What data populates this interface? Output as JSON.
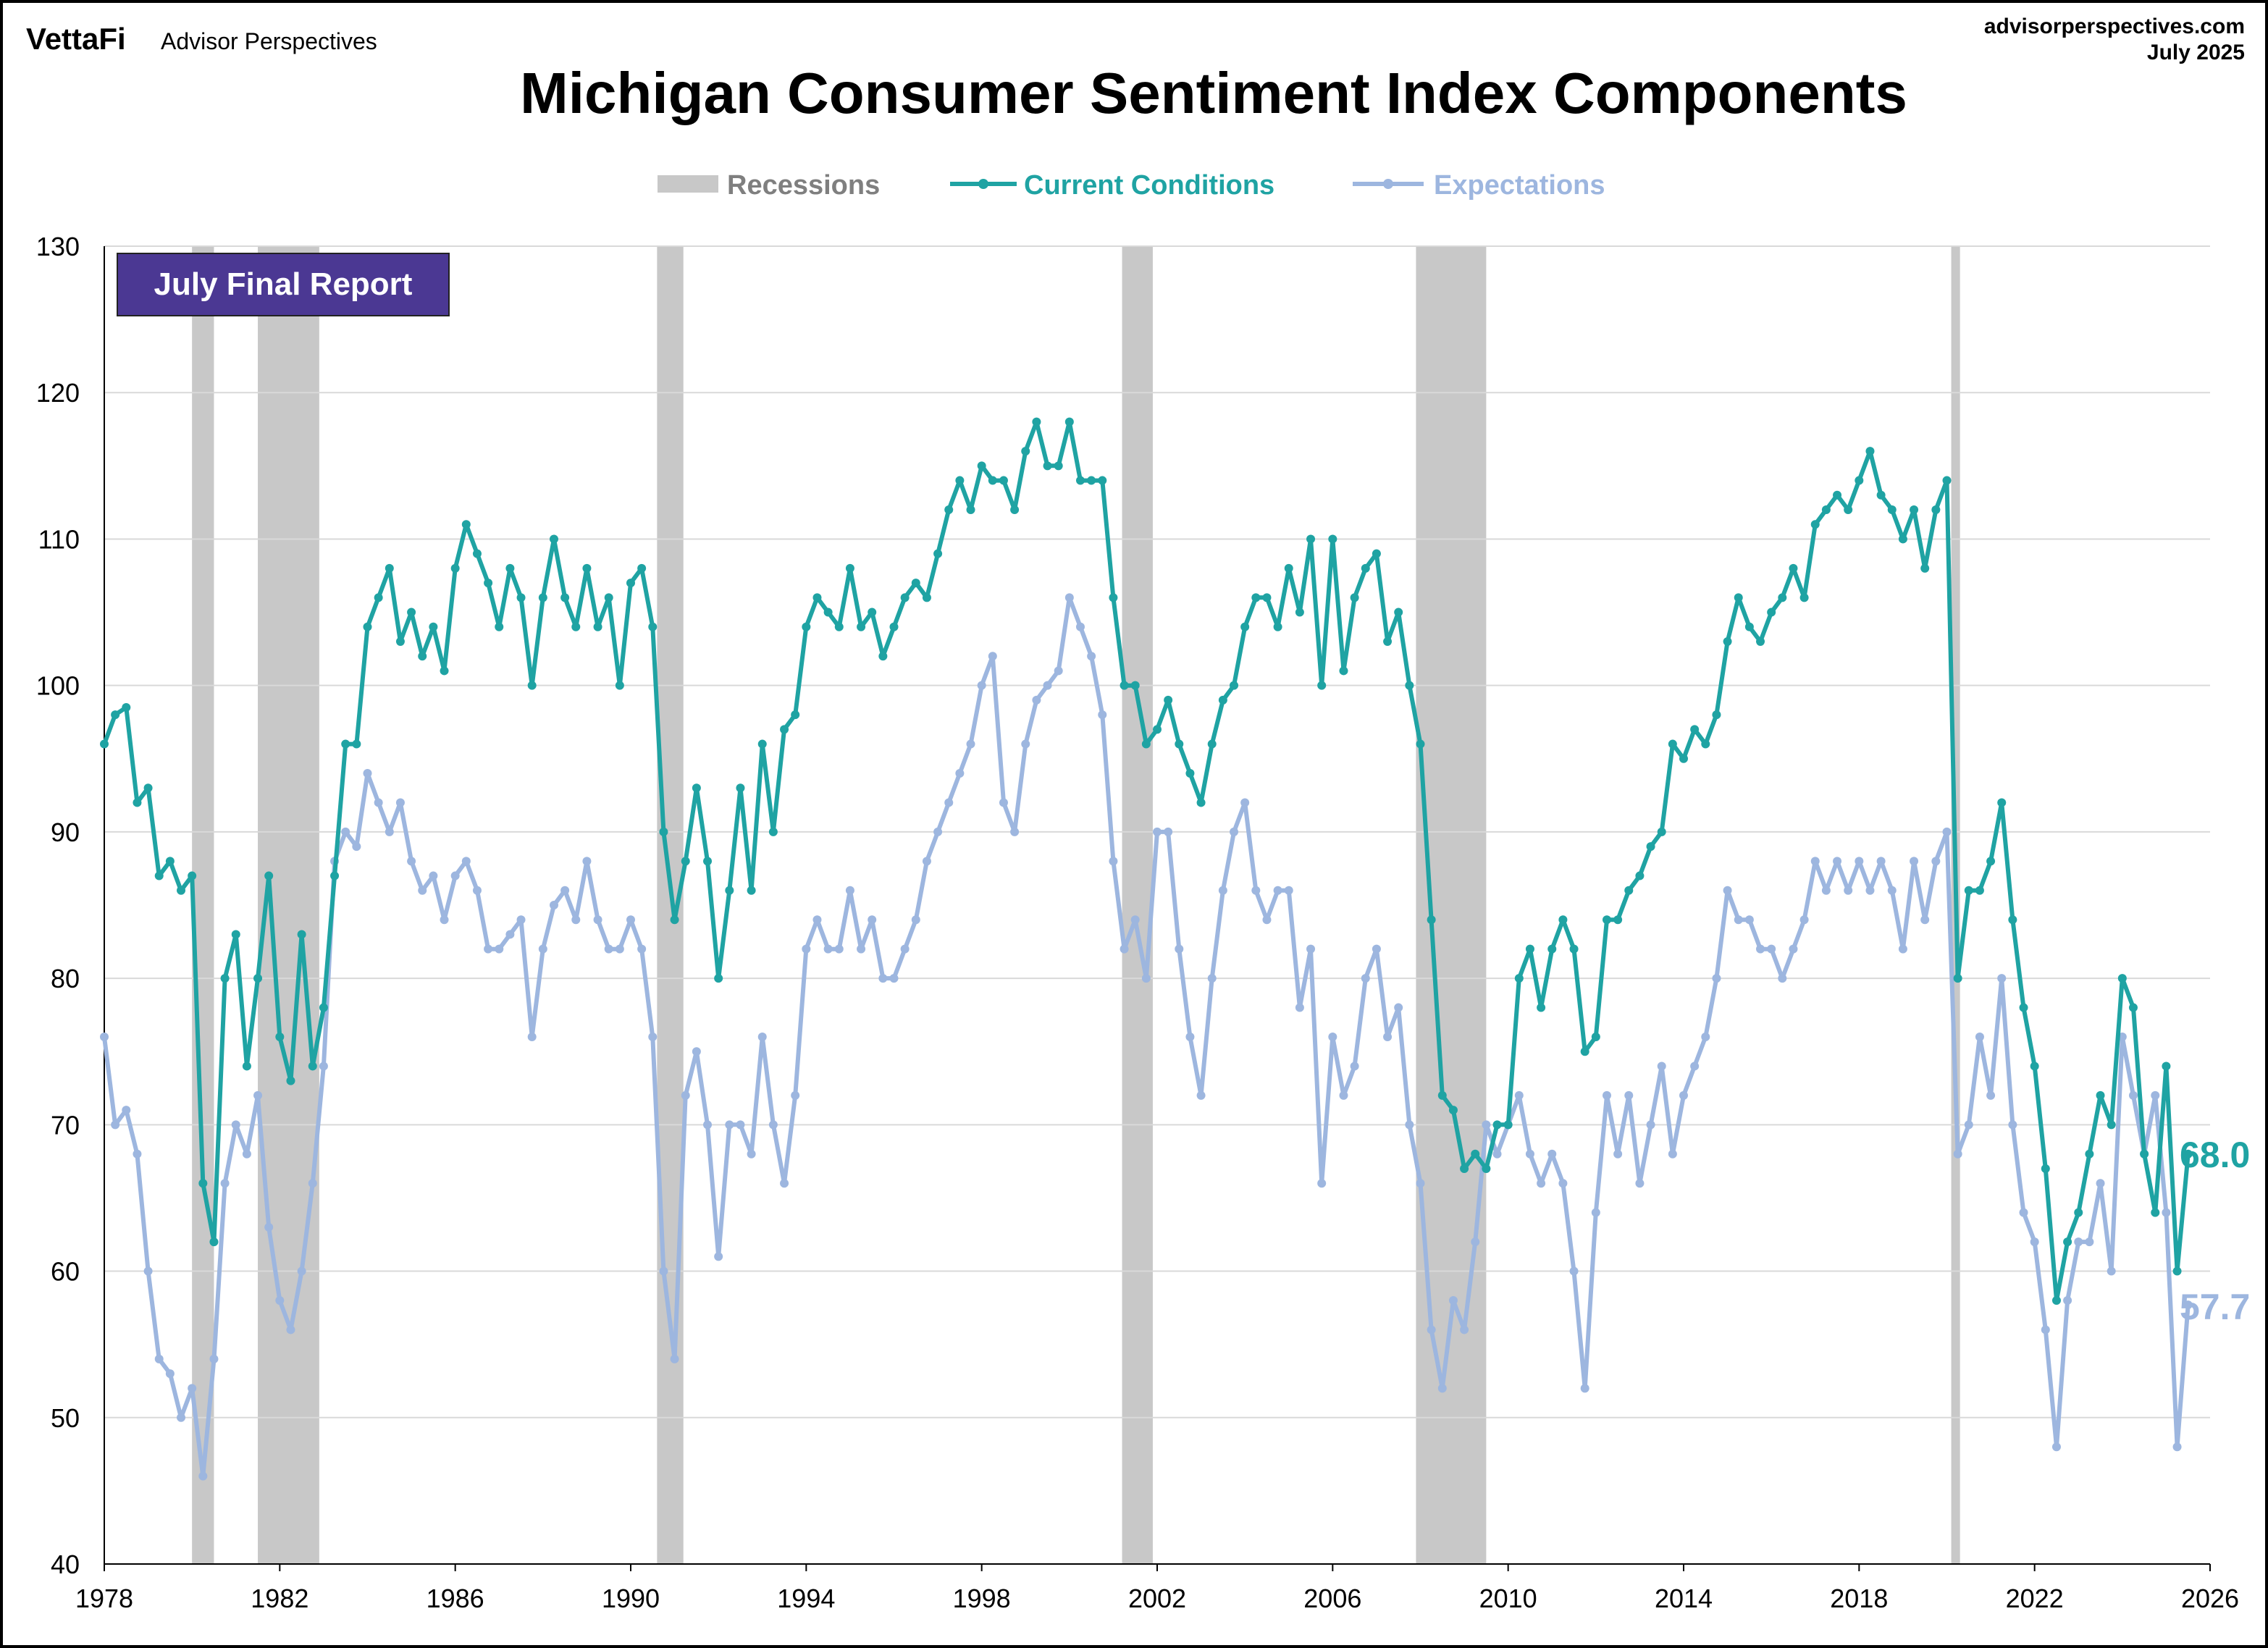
{
  "header": {
    "logo_brand": "VettaFi",
    "logo_sub": "Advisor Perspectives",
    "site": "advisorperspectives.com",
    "date": "July 2025"
  },
  "badge": "July Final Report",
  "colors": {
    "current": "#1FA3A3",
    "expectations": "#9DB6DF",
    "recession": "#C8C8C8",
    "badge": "#4B3893",
    "grid": "#D9D9D9"
  },
  "chart_data": {
    "type": "line",
    "title": "Michigan Consumer Sentiment Index Components",
    "xlabel": "",
    "ylabel": "",
    "xlim": [
      1978,
      2026
    ],
    "ylim": [
      40,
      130
    ],
    "grid": true,
    "legend_position": "top",
    "x_ticks": [
      "1978",
      "1982",
      "1986",
      "1990",
      "1994",
      "1998",
      "2002",
      "2006",
      "2010",
      "2014",
      "2018",
      "2022",
      "2026"
    ],
    "y_ticks": [
      "40",
      "50",
      "60",
      "70",
      "80",
      "90",
      "100",
      "110",
      "120",
      "130"
    ],
    "legend": [
      "Recessions",
      "Current Conditions",
      "Expectations"
    ],
    "recessions": [
      [
        1980.0,
        1980.5
      ],
      [
        1981.5,
        1982.9
      ],
      [
        1990.6,
        1991.2
      ],
      [
        2001.2,
        2001.9
      ],
      [
        2007.9,
        2009.5
      ],
      [
        2020.1,
        2020.3
      ]
    ],
    "x": [
      1978,
      1978.25,
      1978.5,
      1978.75,
      1979,
      1979.25,
      1979.5,
      1979.75,
      1980,
      1980.25,
      1980.5,
      1980.75,
      1981,
      1981.25,
      1981.5,
      1981.75,
      1982,
      1982.25,
      1982.5,
      1982.75,
      1983,
      1983.25,
      1983.5,
      1983.75,
      1984,
      1984.25,
      1984.5,
      1984.75,
      1985,
      1985.25,
      1985.5,
      1985.75,
      1986,
      1986.25,
      1986.5,
      1986.75,
      1987,
      1987.25,
      1987.5,
      1987.75,
      1988,
      1988.25,
      1988.5,
      1988.75,
      1989,
      1989.25,
      1989.5,
      1989.75,
      1990,
      1990.25,
      1990.5,
      1990.75,
      1991,
      1991.25,
      1991.5,
      1991.75,
      1992,
      1992.25,
      1992.5,
      1992.75,
      1993,
      1993.25,
      1993.5,
      1993.75,
      1994,
      1994.25,
      1994.5,
      1994.75,
      1995,
      1995.25,
      1995.5,
      1995.75,
      1996,
      1996.25,
      1996.5,
      1996.75,
      1997,
      1997.25,
      1997.5,
      1997.75,
      1998,
      1998.25,
      1998.5,
      1998.75,
      1999,
      1999.25,
      1999.5,
      1999.75,
      2000,
      2000.25,
      2000.5,
      2000.75,
      2001,
      2001.25,
      2001.5,
      2001.75,
      2002,
      2002.25,
      2002.5,
      2002.75,
      2003,
      2003.25,
      2003.5,
      2003.75,
      2004,
      2004.25,
      2004.5,
      2004.75,
      2005,
      2005.25,
      2005.5,
      2005.75,
      2006,
      2006.25,
      2006.5,
      2006.75,
      2007,
      2007.25,
      2007.5,
      2007.75,
      2008,
      2008.25,
      2008.5,
      2008.75,
      2009,
      2009.25,
      2009.5,
      2009.75,
      2010,
      2010.25,
      2010.5,
      2010.75,
      2011,
      2011.25,
      2011.5,
      2011.75,
      2012,
      2012.25,
      2012.5,
      2012.75,
      2013,
      2013.25,
      2013.5,
      2013.75,
      2014,
      2014.25,
      2014.5,
      2014.75,
      2015,
      2015.25,
      2015.5,
      2015.75,
      2016,
      2016.25,
      2016.5,
      2016.75,
      2017,
      2017.25,
      2017.5,
      2017.75,
      2018,
      2018.25,
      2018.5,
      2018.75,
      2019,
      2019.25,
      2019.5,
      2019.75,
      2020,
      2020.25,
      2020.5,
      2020.75,
      2021,
      2021.25,
      2021.5,
      2021.75,
      2022,
      2022.25,
      2022.5,
      2022.75,
      2023,
      2023.25,
      2023.5,
      2023.75,
      2024,
      2024.25,
      2024.5,
      2024.75,
      2025,
      2025.25,
      2025.5
    ],
    "series": [
      {
        "name": "Current Conditions",
        "last_label": "68.0",
        "values": [
          96,
          98,
          98.5,
          92,
          93,
          87,
          88,
          86,
          87,
          66,
          62,
          80,
          83,
          74,
          80,
          87,
          76,
          73,
          83,
          74,
          78,
          87,
          96,
          96,
          104,
          106,
          108,
          103,
          105,
          102,
          104,
          101,
          108,
          111,
          109,
          107,
          104,
          108,
          106,
          100,
          106,
          110,
          106,
          104,
          108,
          104,
          106,
          100,
          107,
          108,
          104,
          90,
          84,
          88,
          93,
          88,
          80,
          86,
          93,
          86,
          96,
          90,
          97,
          98,
          104,
          106,
          105,
          104,
          108,
          104,
          105,
          102,
          104,
          106,
          107,
          106,
          109,
          112,
          114,
          112,
          115,
          114,
          114,
          112,
          116,
          118,
          115,
          115,
          118,
          114,
          114,
          114,
          106,
          100,
          100,
          96,
          97,
          99,
          96,
          94,
          92,
          96,
          99,
          100,
          104,
          106,
          106,
          104,
          108,
          105,
          110,
          100,
          110,
          101,
          106,
          108,
          109,
          103,
          105,
          100,
          96,
          84,
          72,
          71,
          67,
          68,
          67,
          70,
          70,
          80,
          82,
          78,
          82,
          84,
          82,
          75,
          76,
          84,
          84,
          86,
          87,
          89,
          90,
          96,
          95,
          97,
          96,
          98,
          103,
          106,
          104,
          103,
          105,
          106,
          108,
          106,
          111,
          112,
          113,
          112,
          114,
          116,
          113,
          112,
          110,
          112,
          108,
          112,
          114,
          80,
          86,
          86,
          88,
          92,
          84,
          78,
          74,
          67,
          58,
          62,
          64,
          68,
          72,
          70,
          80,
          78,
          68,
          64,
          74,
          60,
          68.0
        ]
      },
      {
        "name": "Expectations",
        "last_label": "57.7",
        "values": [
          76,
          70,
          71,
          68,
          60,
          54,
          53,
          50,
          52,
          46,
          54,
          66,
          70,
          68,
          72,
          63,
          58,
          56,
          60,
          66,
          74,
          88,
          90,
          89,
          94,
          92,
          90,
          92,
          88,
          86,
          87,
          84,
          87,
          88,
          86,
          82,
          82,
          83,
          84,
          76,
          82,
          85,
          86,
          84,
          88,
          84,
          82,
          82,
          84,
          82,
          76,
          60,
          54,
          72,
          75,
          70,
          61,
          70,
          70,
          68,
          76,
          70,
          66,
          72,
          82,
          84,
          82,
          82,
          86,
          82,
          84,
          80,
          80,
          82,
          84,
          88,
          90,
          92,
          94,
          96,
          100,
          102,
          92,
          90,
          96,
          99,
          100,
          101,
          106,
          104,
          102,
          98,
          88,
          82,
          84,
          80,
          90,
          90,
          82,
          76,
          72,
          80,
          86,
          90,
          92,
          86,
          84,
          86,
          86,
          78,
          82,
          66,
          76,
          72,
          74,
          80,
          82,
          76,
          78,
          70,
          66,
          56,
          52,
          58,
          56,
          62,
          70,
          68,
          70,
          72,
          68,
          66,
          68,
          66,
          60,
          52,
          64,
          72,
          68,
          72,
          66,
          70,
          74,
          68,
          72,
          74,
          76,
          80,
          86,
          84,
          84,
          82,
          82,
          80,
          82,
          84,
          88,
          86,
          88,
          86,
          88,
          86,
          88,
          86,
          82,
          88,
          84,
          88,
          90,
          68,
          70,
          76,
          72,
          80,
          70,
          64,
          62,
          56,
          48,
          58,
          62,
          62,
          66,
          60,
          76,
          72,
          68,
          72,
          64,
          48,
          57.7
        ]
      }
    ]
  }
}
